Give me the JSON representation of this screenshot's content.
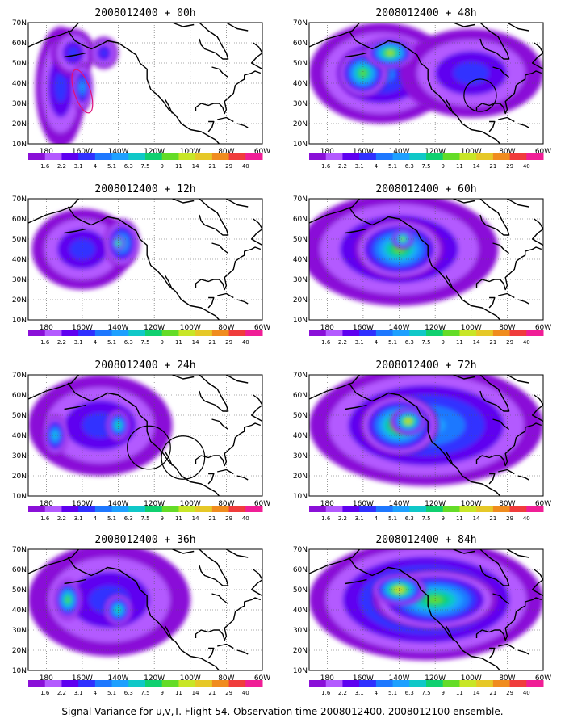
{
  "caption": "Signal Variance for u,v,T. Flight 54. Observation time 2008012400. 2008012100 ensemble.",
  "chart_data": [
    {
      "type": "heatmap",
      "title": "2008012400 + 00h",
      "x_ticks": [
        "180",
        "160W",
        "140W",
        "120W",
        "100W",
        "80W",
        "60W"
      ],
      "y_ticks": [
        "10N",
        "20N",
        "30N",
        "40N",
        "50N",
        "60N",
        "70N"
      ],
      "colorbar": {
        "labels": [
          "1.6",
          "2.2",
          "3.1",
          "4",
          "5.1",
          "6.3",
          "7.5",
          "9",
          "11",
          "14",
          "21",
          "29",
          "40"
        ],
        "colors": [
          "#8a10d8",
          "#b35aff",
          "#5f00f0",
          "#3030ff",
          "#1e78ff",
          "#1ea0ff",
          "#10c8c8",
          "#10d070",
          "#64dc28",
          "#c8e628",
          "#e6c828",
          "#f08c1e",
          "#f03c3c",
          "#f01e96"
        ]
      },
      "blobs": [
        {
          "lon": -172,
          "lat": 38,
          "rlon": 14,
          "rlat": 30,
          "v": 3
        },
        {
          "lon": -165,
          "lat": 55,
          "rlon": 12,
          "rlat": 12,
          "v": 3
        },
        {
          "lon": -148,
          "lat": 55,
          "rlon": 8,
          "rlat": 8,
          "v": 3
        },
        {
          "lon": -160,
          "lat": 38,
          "rlon": 6,
          "rlat": 12,
          "v": 5
        }
      ]
    },
    {
      "type": "heatmap",
      "title": "2008012400 + 48h",
      "x_ticks": [
        "180",
        "160W",
        "140W",
        "120W",
        "100W",
        "80W",
        "60W"
      ],
      "y_ticks": [
        "10N",
        "20N",
        "30N",
        "40N",
        "50N",
        "60N",
        "70N"
      ],
      "colorbar": {
        "labels": [
          "1.6",
          "2.2",
          "3.1",
          "4",
          "5.1",
          "6.3",
          "7.5",
          "9",
          "11",
          "14",
          "21",
          "29",
          "40"
        ],
        "colors": [
          "#8a10d8",
          "#b35aff",
          "#5f00f0",
          "#3030ff",
          "#1e78ff",
          "#1ea0ff",
          "#10c8c8",
          "#10d070",
          "#64dc28",
          "#c8e628",
          "#e6c828",
          "#f08c1e",
          "#f03c3c",
          "#f01e96"
        ]
      },
      "blobs": [
        {
          "lon": -150,
          "lat": 45,
          "rlon": 40,
          "rlat": 25,
          "v": 4
        },
        {
          "lon": -100,
          "lat": 45,
          "rlon": 40,
          "rlat": 22,
          "v": 3
        },
        {
          "lon": -160,
          "lat": 45,
          "rlon": 14,
          "rlat": 12,
          "v": 8
        },
        {
          "lon": -145,
          "lat": 55,
          "rlon": 14,
          "rlat": 8,
          "v": 9
        }
      ]
    },
    {
      "type": "heatmap",
      "title": "2008012400 + 12h",
      "x_ticks": [
        "180",
        "160W",
        "140W",
        "120W",
        "100W",
        "80W",
        "60W"
      ],
      "y_ticks": [
        "10N",
        "20N",
        "30N",
        "40N",
        "50N",
        "60N",
        "70N"
      ],
      "colorbar": {
        "labels": [
          "1.6",
          "2.2",
          "3.1",
          "4",
          "5.1",
          "6.3",
          "7.5",
          "9",
          "11",
          "14",
          "21",
          "29",
          "40"
        ],
        "colors": [
          "#8a10d8",
          "#b35aff",
          "#5f00f0",
          "#3030ff",
          "#1e78ff",
          "#1ea0ff",
          "#10c8c8",
          "#10d070",
          "#64dc28",
          "#c8e628",
          "#e6c828",
          "#f08c1e",
          "#f03c3c",
          "#f01e96"
        ]
      },
      "blobs": [
        {
          "lon": -160,
          "lat": 45,
          "rlon": 28,
          "rlat": 20,
          "v": 3
        },
        {
          "lon": -138,
          "lat": 48,
          "rlon": 10,
          "rlat": 12,
          "v": 6
        },
        {
          "lon": -140,
          "lat": 48,
          "rlon": 4,
          "rlat": 4,
          "v": 9
        }
      ]
    },
    {
      "type": "heatmap",
      "title": "2008012400 + 60h",
      "x_ticks": [
        "180",
        "160W",
        "140W",
        "120W",
        "100W",
        "80W",
        "60W"
      ],
      "y_ticks": [
        "10N",
        "20N",
        "30N",
        "40N",
        "50N",
        "60N",
        "70N"
      ],
      "colorbar": {
        "labels": [
          "1.6",
          "2.2",
          "3.1",
          "4",
          "5.1",
          "6.3",
          "7.5",
          "9",
          "11",
          "14",
          "21",
          "29",
          "40"
        ],
        "colors": [
          "#8a10d8",
          "#b35aff",
          "#5f00f0",
          "#3030ff",
          "#1e78ff",
          "#1ea0ff",
          "#10c8c8",
          "#10d070",
          "#64dc28",
          "#c8e628",
          "#e6c828",
          "#f08c1e",
          "#f03c3c",
          "#f01e96"
        ]
      },
      "blobs": [
        {
          "lon": -140,
          "lat": 45,
          "rlon": 55,
          "rlat": 28,
          "v": 4
        },
        {
          "lon": -140,
          "lat": 45,
          "rlon": 25,
          "rlat": 15,
          "v": 8
        },
        {
          "lon": -138,
          "lat": 50,
          "rlon": 6,
          "rlat": 5,
          "v": 9
        }
      ]
    },
    {
      "type": "heatmap",
      "title": "2008012400 + 24h",
      "x_ticks": [
        "180",
        "160W",
        "140W",
        "120W",
        "100W",
        "80W",
        "60W"
      ],
      "y_ticks": [
        "10N",
        "20N",
        "30N",
        "40N",
        "50N",
        "60N",
        "70N"
      ],
      "colorbar": {
        "labels": [
          "1.6",
          "2.2",
          "3.1",
          "4",
          "5.1",
          "6.3",
          "7.5",
          "9",
          "11",
          "14",
          "21",
          "29",
          "40"
        ],
        "colors": [
          "#8a10d8",
          "#b35aff",
          "#5f00f0",
          "#3030ff",
          "#1e78ff",
          "#1ea0ff",
          "#10c8c8",
          "#10d070",
          "#64dc28",
          "#c8e628",
          "#e6c828",
          "#f08c1e",
          "#f03c3c",
          "#f01e96"
        ]
      },
      "blobs": [
        {
          "lon": -150,
          "lat": 45,
          "rlon": 40,
          "rlat": 25,
          "v": 3
        },
        {
          "lon": -175,
          "lat": 40,
          "rlon": 7,
          "rlat": 10,
          "v": 6
        },
        {
          "lon": -140,
          "lat": 45,
          "rlon": 7,
          "rlat": 8,
          "v": 7
        }
      ]
    },
    {
      "type": "heatmap",
      "title": "2008012400 + 72h",
      "x_ticks": [
        "180",
        "160W",
        "140W",
        "120W",
        "100W",
        "80W",
        "60W"
      ],
      "y_ticks": [
        "10N",
        "20N",
        "30N",
        "40N",
        "50N",
        "60N",
        "70N"
      ],
      "colorbar": {
        "labels": [
          "1.6",
          "2.2",
          "3.1",
          "4",
          "5.1",
          "6.3",
          "7.5",
          "9",
          "11",
          "14",
          "21",
          "29",
          "40"
        ],
        "colors": [
          "#8a10d8",
          "#b35aff",
          "#5f00f0",
          "#3030ff",
          "#1e78ff",
          "#1ea0ff",
          "#10c8c8",
          "#10d070",
          "#64dc28",
          "#c8e628",
          "#e6c828",
          "#f08c1e",
          "#f03c3c",
          "#f01e96"
        ]
      },
      "blobs": [
        {
          "lon": -125,
          "lat": 45,
          "rlon": 65,
          "rlat": 30,
          "v": 5
        },
        {
          "lon": -140,
          "lat": 45,
          "rlon": 22,
          "rlat": 15,
          "v": 9
        },
        {
          "lon": -135,
          "lat": 47,
          "rlon": 10,
          "rlat": 7,
          "v": 10
        }
      ]
    },
    {
      "type": "heatmap",
      "title": "2008012400 + 36h",
      "x_ticks": [
        "180",
        "160W",
        "140W",
        "120W",
        "100W",
        "80W",
        "60W"
      ],
      "y_ticks": [
        "10N",
        "20N",
        "30N",
        "40N",
        "50N",
        "60N",
        "70N"
      ],
      "colorbar": {
        "labels": [
          "1.6",
          "2.2",
          "3.1",
          "4",
          "5.1",
          "6.3",
          "7.5",
          "9",
          "11",
          "14",
          "21",
          "29",
          "40"
        ],
        "colors": [
          "#8a10d8",
          "#b35aff",
          "#5f00f0",
          "#3030ff",
          "#1e78ff",
          "#1ea0ff",
          "#10c8c8",
          "#10d070",
          "#64dc28",
          "#c8e628",
          "#e6c828",
          "#f08c1e",
          "#f03c3c",
          "#f01e96"
        ]
      },
      "blobs": [
        {
          "lon": -145,
          "lat": 45,
          "rlon": 45,
          "rlat": 28,
          "v": 3
        },
        {
          "lon": -168,
          "lat": 45,
          "rlon": 8,
          "rlat": 10,
          "v": 8
        },
        {
          "lon": -140,
          "lat": 40,
          "rlon": 8,
          "rlat": 8,
          "v": 7
        }
      ]
    },
    {
      "type": "heatmap",
      "title": "2008012400 + 84h",
      "x_ticks": [
        "180",
        "160W",
        "140W",
        "120W",
        "100W",
        "80W",
        "60W"
      ],
      "y_ticks": [
        "10N",
        "20N",
        "30N",
        "40N",
        "50N",
        "60N",
        "70N"
      ],
      "colorbar": {
        "labels": [
          "1.6",
          "2.2",
          "3.1",
          "4",
          "5.1",
          "6.3",
          "7.5",
          "9",
          "11",
          "14",
          "21",
          "29",
          "40"
        ],
        "colors": [
          "#8a10d8",
          "#b35aff",
          "#5f00f0",
          "#3030ff",
          "#1e78ff",
          "#1ea0ff",
          "#10c8c8",
          "#10d070",
          "#64dc28",
          "#c8e628",
          "#e6c828",
          "#f08c1e",
          "#f03c3c",
          "#f01e96"
        ]
      },
      "blobs": [
        {
          "lon": -125,
          "lat": 45,
          "rlon": 65,
          "rlat": 30,
          "v": 6
        },
        {
          "lon": -120,
          "lat": 45,
          "rlon": 35,
          "rlat": 15,
          "v": 8
        },
        {
          "lon": -140,
          "lat": 50,
          "rlon": 15,
          "rlat": 8,
          "v": 10
        }
      ]
    }
  ]
}
